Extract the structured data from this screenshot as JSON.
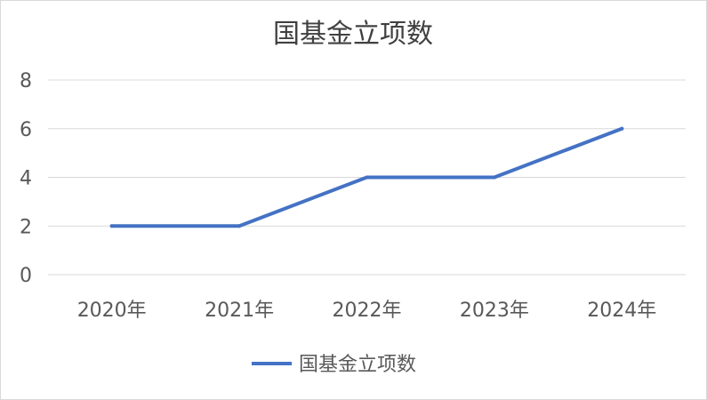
{
  "chart_data": {
    "type": "line",
    "title": "国基金立项数",
    "categories": [
      "2020年",
      "2021年",
      "2022年",
      "2023年",
      "2024年"
    ],
    "series": [
      {
        "name": "国基金立项数",
        "values": [
          2,
          2,
          4,
          4,
          6
        ],
        "color": "#4472c4"
      }
    ],
    "ylim": [
      0,
      8
    ],
    "yticks": [
      0,
      2,
      4,
      6,
      8
    ],
    "grid": true,
    "legend_position": "bottom"
  }
}
